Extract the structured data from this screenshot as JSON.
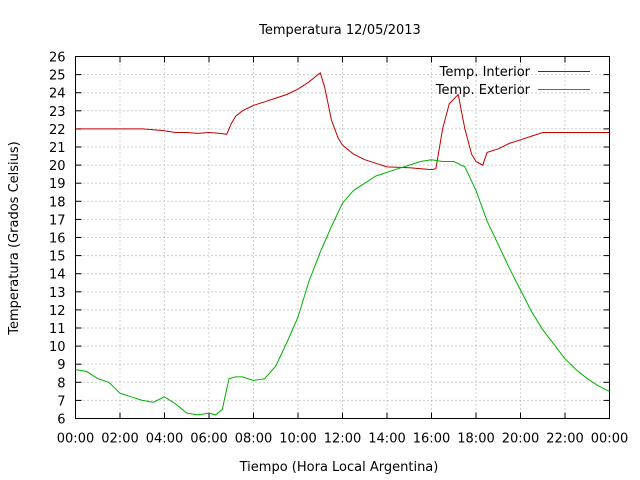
{
  "chart_data": {
    "type": "line",
    "title": "Temperatura 12/05/2013",
    "xlabel": "Tiempo (Hora Local Argentina)",
    "ylabel": "Temperatura (Grados Celsius)",
    "xlim": [
      0,
      24
    ],
    "ylim": [
      6,
      26
    ],
    "x_ticks": [
      "00:00",
      "02:00",
      "04:00",
      "06:00",
      "08:00",
      "10:00",
      "12:00",
      "14:00",
      "16:00",
      "18:00",
      "20:00",
      "22:00",
      "00:00"
    ],
    "y_ticks": [
      6,
      7,
      8,
      9,
      10,
      11,
      12,
      13,
      14,
      15,
      16,
      17,
      18,
      19,
      20,
      21,
      22,
      23,
      24,
      25,
      26
    ],
    "grid": true,
    "legend_position": "top-right",
    "series": [
      {
        "name": "Temp. Interior",
        "color": "#c00000",
        "x": [
          0,
          1,
          2,
          3,
          3.5,
          4,
          4.5,
          5,
          5.5,
          6,
          6.5,
          6.8,
          7,
          7.2,
          7.5,
          8,
          8.5,
          9,
          9.5,
          10,
          10.5,
          10.8,
          11,
          11.2,
          11.5,
          11.8,
          12,
          12.5,
          13,
          13.5,
          14,
          15,
          16,
          16.2,
          16.5,
          16.8,
          17.2,
          17.5,
          17.8,
          18,
          18.3,
          18.5,
          19,
          19.5,
          20,
          20.5,
          21,
          22,
          23,
          24
        ],
        "y": [
          22.0,
          22.0,
          22.0,
          22.0,
          21.95,
          21.9,
          21.8,
          21.8,
          21.75,
          21.8,
          21.75,
          21.7,
          22.3,
          22.7,
          23.0,
          23.3,
          23.5,
          23.7,
          23.9,
          24.2,
          24.6,
          24.9,
          25.1,
          24.3,
          22.5,
          21.5,
          21.1,
          20.6,
          20.3,
          20.1,
          19.9,
          19.85,
          19.75,
          19.8,
          22.0,
          23.4,
          23.9,
          22.0,
          20.6,
          20.2,
          20.0,
          20.7,
          20.9,
          21.2,
          21.4,
          21.6,
          21.8,
          21.8,
          21.8,
          21.8
        ]
      },
      {
        "name": "Temp. Exterior",
        "color": "#00b000",
        "x": [
          0,
          0.5,
          1,
          1.5,
          2,
          2.5,
          3,
          3.5,
          4,
          4.5,
          5,
          5.5,
          6,
          6.3,
          6.6,
          6.9,
          7.2,
          7.5,
          8,
          8.5,
          9,
          9.5,
          10,
          10.5,
          11,
          11.5,
          12,
          12.5,
          13,
          13.5,
          14,
          14.5,
          15,
          15.5,
          16,
          16.5,
          17,
          17.5,
          18,
          18.5,
          19,
          19.5,
          20,
          20.5,
          21,
          21.5,
          22,
          22.5,
          23,
          23.5,
          24
        ],
        "y": [
          8.7,
          8.6,
          8.2,
          8.0,
          7.4,
          7.2,
          7.0,
          6.9,
          7.2,
          6.8,
          6.3,
          6.2,
          6.3,
          6.2,
          6.5,
          8.2,
          8.3,
          8.3,
          8.1,
          8.2,
          8.9,
          10.2,
          11.6,
          13.6,
          15.2,
          16.6,
          17.9,
          18.6,
          19.0,
          19.4,
          19.6,
          19.8,
          20.0,
          20.2,
          20.3,
          20.2,
          20.2,
          19.9,
          18.6,
          16.9,
          15.6,
          14.3,
          13.1,
          11.9,
          10.9,
          10.1,
          9.3,
          8.7,
          8.2,
          7.8,
          7.5
        ]
      }
    ]
  }
}
